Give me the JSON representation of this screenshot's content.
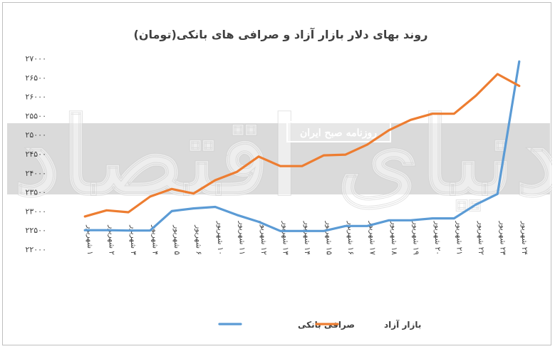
{
  "chart_data": {
    "type": "line",
    "title": "روند بهای دلار بازار آزاد و صرافی های بانکی(تومان)",
    "xlabel": "",
    "ylabel": "",
    "ylim": [
      22000,
      27000
    ],
    "y_ticks": [
      22000,
      22500,
      23000,
      23500,
      24000,
      24500,
      25000,
      25500,
      26000,
      26500,
      27000
    ],
    "y_tick_labels": [
      "۲۲۰۰۰",
      "۲۲۵۰۰",
      "۲۳۰۰۰",
      "۲۳۵۰۰",
      "۲۴۰۰۰",
      "۲۴۵۰۰",
      "۲۵۰۰۰",
      "۲۵۵۰۰",
      "۲۶۰۰۰",
      "۲۶۵۰۰",
      "۲۷۰۰۰"
    ],
    "categories": [
      "۱ شهریور",
      "۲ شهریور",
      "۳ شهریور",
      "۴ شهریور",
      "۵ شهریور",
      "۶ شهریور",
      "۱۰ شهریور",
      "۱۱ شهریور",
      "۱۲ شهریور",
      "۱۳ شهریور",
      "۱۴ شهریور",
      "۱۵ شهریور",
      "۱۶ شهریور",
      "۱۷ شهریور",
      "۱۸ شهریور",
      "۱۹ شهریور",
      "۲۰ شهریور",
      "۲۱ شهریور",
      "۲۲ شهریور",
      "۲۳ شهریور",
      "۲۴ شهریور"
    ],
    "series": [
      {
        "name": "صرافی بانکی",
        "color": "#5b9bd5",
        "values": [
          22500,
          22500,
          22490,
          22490,
          23000,
          23070,
          23110,
          22900,
          22720,
          22480,
          22480,
          22480,
          22610,
          22610,
          22760,
          22760,
          22810,
          22810,
          23170,
          23450,
          26920
        ]
      },
      {
        "name": "بازار آزاد",
        "color": "#ed7d31",
        "values": [
          22860,
          23020,
          22970,
          23380,
          23580,
          23460,
          23810,
          24030,
          24430,
          24180,
          24180,
          24460,
          24480,
          24740,
          25120,
          25390,
          25550,
          25550,
          26020,
          26590,
          26280
        ]
      }
    ],
    "legend_position": "bottom",
    "grid": false
  },
  "watermark": {
    "big_text": "دنیای اقتصاد",
    "badge_text": "روزنامه صبح ایران"
  }
}
